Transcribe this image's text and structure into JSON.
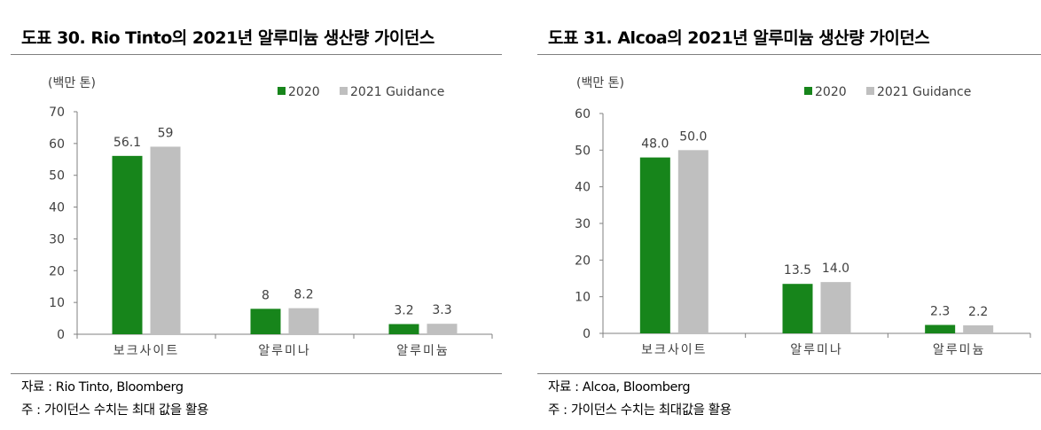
{
  "colors": {
    "series2020": "#17851b",
    "series2021": "#bfbfbf",
    "axis": "#808080",
    "text": "#404040"
  },
  "charts": [
    {
      "title": "도표 30. Rio Tinto의 2021년 알루미늄 생산량 가이던스",
      "source": "자료 : Rio Tinto, Bloomberg",
      "note": "주 : 가이던스 수치는 최대 값을 활용",
      "unit": "(백만 톤)"
    },
    {
      "title": "도표 31. Alcoa의 2021년 알루미늄 생산량 가이던스",
      "source": "자료 : Alcoa, Bloomberg",
      "note": "주 : 가이던스 수치는 최대값을 활용",
      "unit": "(백만 톤)"
    }
  ],
  "chart_data": [
    {
      "type": "bar",
      "title": "도표 30. Rio Tinto의 2021년 알루미늄 생산량 가이던스",
      "ylabel": "(백만 톤)",
      "categories": [
        "보크사이트",
        "알루미나",
        "알루미늄"
      ],
      "series": [
        {
          "name": "2020",
          "values": [
            56.1,
            8,
            3.2
          ],
          "labels": [
            "56.1",
            "8",
            "3.2"
          ]
        },
        {
          "name": "2021 Guidance",
          "values": [
            59,
            8.2,
            3.3
          ],
          "labels": [
            "59",
            "8.2",
            "3.3"
          ]
        }
      ],
      "ylim": [
        0,
        70
      ],
      "yticks": [
        "0",
        "10",
        "20",
        "30",
        "40",
        "50",
        "60",
        "70"
      ],
      "grid": false,
      "legend": "top-right"
    },
    {
      "type": "bar",
      "title": "도표 31. Alcoa의 2021년 알루미늄 생산량 가이던스",
      "ylabel": "(백만 톤)",
      "categories": [
        "보크사이트",
        "알루미나",
        "알루미늄"
      ],
      "series": [
        {
          "name": "2020",
          "values": [
            48.0,
            13.5,
            2.3
          ],
          "labels": [
            "48.0",
            "13.5",
            "2.3"
          ]
        },
        {
          "name": "2021 Guidance",
          "values": [
            50.0,
            14.0,
            2.2
          ],
          "labels": [
            "50.0",
            "14.0",
            "2.2"
          ]
        }
      ],
      "ylim": [
        0,
        60
      ],
      "yticks": [
        "0",
        "10",
        "20",
        "30",
        "40",
        "50",
        "60"
      ],
      "grid": false,
      "legend": "top-right"
    }
  ]
}
